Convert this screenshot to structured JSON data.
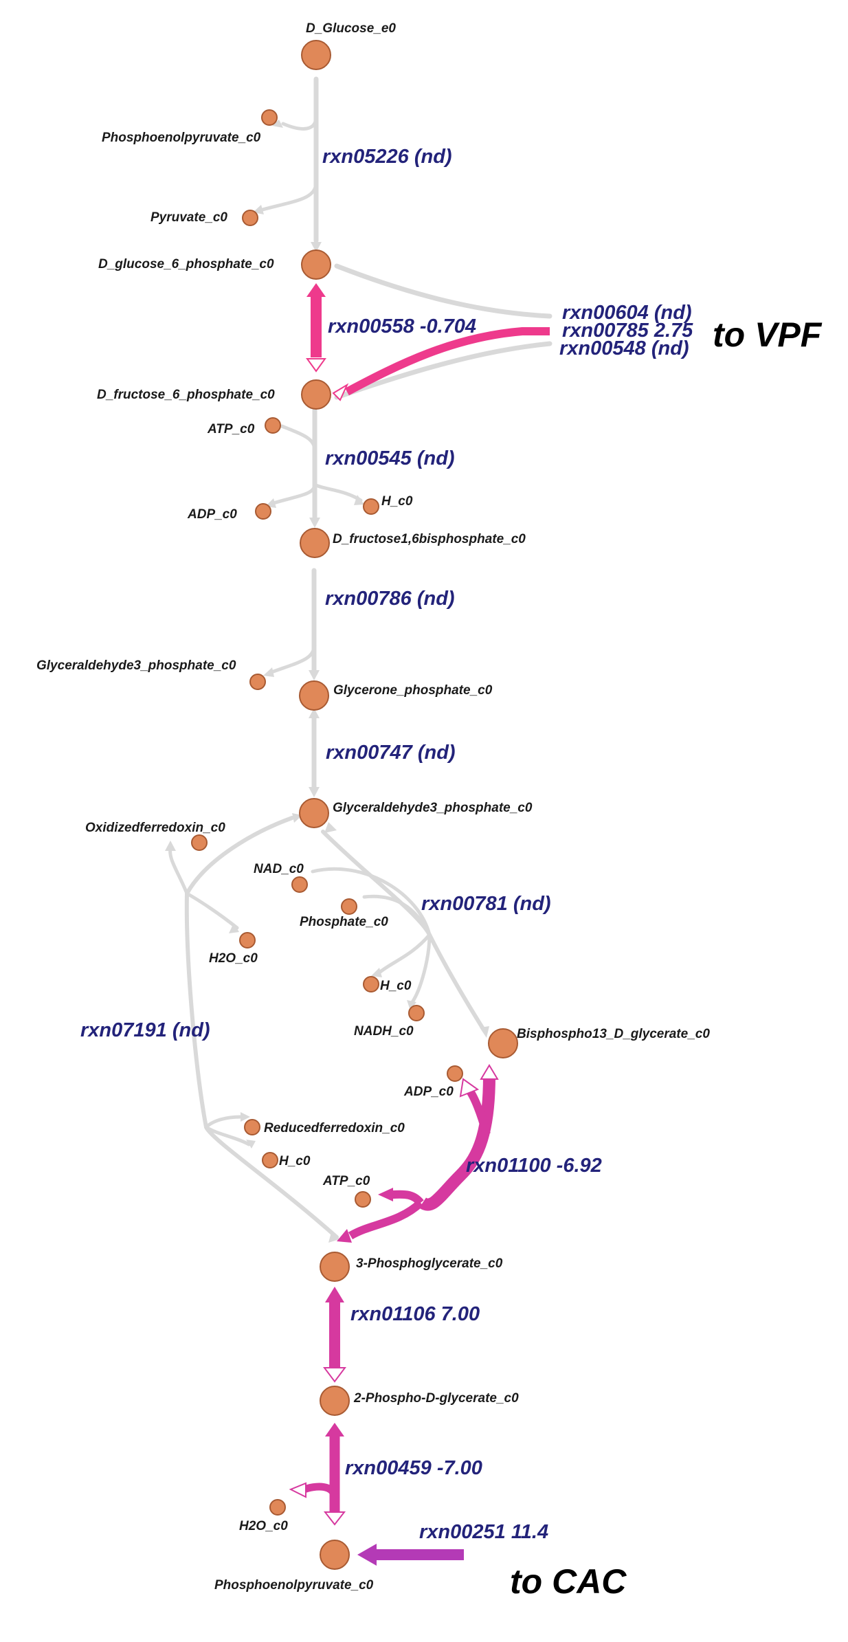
{
  "metabolites": {
    "glucose_e0": "D_Glucose_e0",
    "pep_a": "Phosphoenolpyruvate_c0",
    "pyruvate": "Pyruvate_c0",
    "g6p": "D_glucose_6_phosphate_c0",
    "f6p": "D_fructose_6_phosphate_c0",
    "atp_a": "ATP_c0",
    "adp_a": "ADP_c0",
    "h_a": "H_c0",
    "fbp": "D_fructose1,6bisphosphate_c0",
    "gap_a": "Glyceraldehyde3_phosphate_c0",
    "dhap": "Glycerone_phosphate_c0",
    "gap_b": "Glyceraldehyde3_phosphate_c0",
    "oxfd": "Oxidizedferredoxin_c0",
    "nad": "NAD_c0",
    "phosphate": "Phosphate_c0",
    "h2o_a": "H2O_c0",
    "h_b": "H_c0",
    "nadh": "NADH_c0",
    "bpg": "Bisphospho13_D_glycerate_c0",
    "adp_b": "ADP_c0",
    "redfd": "Reducedferredoxin_c0",
    "h_c": "H_c0",
    "atp_b": "ATP_c0",
    "pg3": "3-Phosphoglycerate_c0",
    "pg2": "2-Phospho-D-glycerate_c0",
    "h2o_b": "H2O_c0",
    "pep_b": "Phosphoenolpyruvate_c0"
  },
  "reactions": {
    "rxn05226": "rxn05226 (nd)",
    "rxn00558": "rxn00558 -0.704",
    "rxn00604": "rxn00604 (nd)",
    "rxn00785": "rxn00785 2.75",
    "rxn00548": "rxn00548 (nd)",
    "rxn00545": "rxn00545 (nd)",
    "rxn00786": "rxn00786 (nd)",
    "rxn00747": "rxn00747 (nd)",
    "rxn00781": "rxn00781 (nd)",
    "rxn07191": "rxn07191 (nd)",
    "rxn01100": "rxn01100 -6.92",
    "rxn01106": "rxn01106 7.00",
    "rxn00459": "rxn00459 -7.00",
    "rxn00251": "rxn00251 11.4"
  },
  "annotations": {
    "to_vpf": "to VPF",
    "to_cac": "to CAC"
  },
  "colors": {
    "inactive_flux": "#d9d9d9",
    "pink_flux": "#ee3a8c",
    "magenta_flux": "#d6399f",
    "purple_flux": "#b43ab6",
    "metabolite_fill": "#e08858",
    "reaction_label": "#23237a"
  }
}
